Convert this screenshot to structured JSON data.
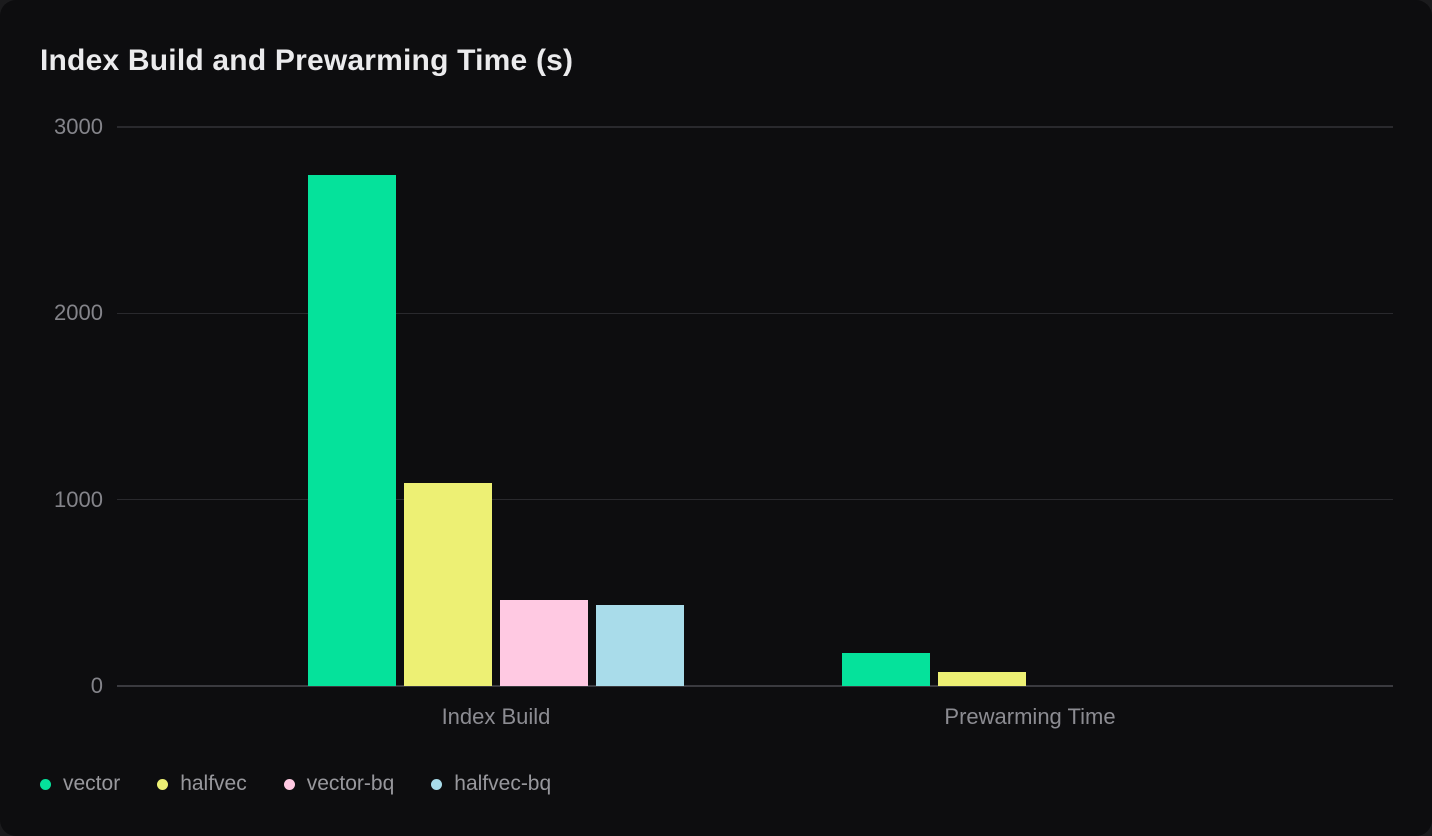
{
  "chart_data": {
    "type": "bar",
    "title": "Index Build and Prewarming Time (s)",
    "categories": [
      "Index Build",
      "Prewarming Time"
    ],
    "series": [
      {
        "name": "vector",
        "color": "#05e29b",
        "values": [
          2740,
          175
        ]
      },
      {
        "name": "halfvec",
        "color": "#edf074",
        "values": [
          1090,
          75
        ]
      },
      {
        "name": "vector-bq",
        "color": "#ffc9e2",
        "values": [
          460,
          0
        ]
      },
      {
        "name": "halfvec-bq",
        "color": "#a9dcea",
        "values": [
          435,
          0
        ]
      }
    ],
    "xlabel": "",
    "ylabel": "",
    "ylim": [
      0,
      3000
    ],
    "yticks": [
      0,
      1000,
      2000,
      3000
    ],
    "grid": true,
    "legend_position": "bottom-left",
    "background": "#0d0d0f",
    "outer_background": "#1b1b1d"
  }
}
